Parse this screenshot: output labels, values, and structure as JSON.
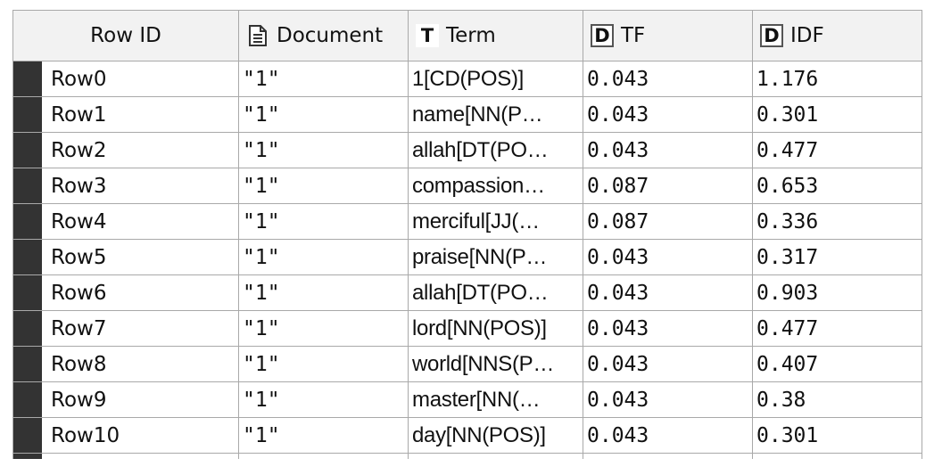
{
  "table": {
    "columns": [
      {
        "label": "Row ID",
        "icon": "none"
      },
      {
        "label": "Document",
        "icon": "document-icon"
      },
      {
        "label": "Term",
        "icon": "term-type-icon",
        "icon_glyph": "T"
      },
      {
        "label": "TF",
        "icon": "double-type-icon",
        "icon_glyph": "D"
      },
      {
        "label": "IDF",
        "icon": "double-type-icon",
        "icon_glyph": "D"
      }
    ],
    "rows": [
      {
        "id": "Row0",
        "document": "\"1\"",
        "term": "1[CD(POS)]",
        "tf": "0.043",
        "idf": "1.176"
      },
      {
        "id": "Row1",
        "document": "\"1\"",
        "term": "name[NN(P…",
        "tf": "0.043",
        "idf": "0.301"
      },
      {
        "id": "Row2",
        "document": "\"1\"",
        "term": "allah[DT(PO…",
        "tf": "0.043",
        "idf": "0.477"
      },
      {
        "id": "Row3",
        "document": "\"1\"",
        "term": "compassion…",
        "tf": "0.087",
        "idf": "0.653"
      },
      {
        "id": "Row4",
        "document": "\"1\"",
        "term": "merciful[JJ(…",
        "tf": "0.087",
        "idf": "0.336"
      },
      {
        "id": "Row5",
        "document": "\"1\"",
        "term": "praise[NN(P…",
        "tf": "0.043",
        "idf": "0.317"
      },
      {
        "id": "Row6",
        "document": "\"1\"",
        "term": "allah[DT(PO…",
        "tf": "0.043",
        "idf": "0.903"
      },
      {
        "id": "Row7",
        "document": "\"1\"",
        "term": "lord[NN(POS)]",
        "tf": "0.043",
        "idf": "0.477"
      },
      {
        "id": "Row8",
        "document": "\"1\"",
        "term": "world[NNS(P…",
        "tf": "0.043",
        "idf": "0.407"
      },
      {
        "id": "Row9",
        "document": "\"1\"",
        "term": "master[NN(…",
        "tf": "0.043",
        "idf": "0.38"
      },
      {
        "id": "Row10",
        "document": "\"1\"",
        "term": "day[NN(POS)]",
        "tf": "0.043",
        "idf": "0.301"
      }
    ]
  },
  "colors": {
    "header_bg": "#f2f2f2",
    "grid_line": "#a9a9a9",
    "row_marker": "#333333"
  }
}
